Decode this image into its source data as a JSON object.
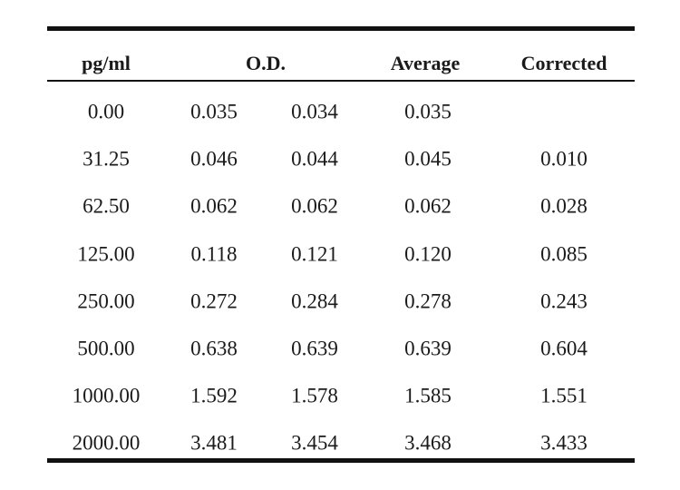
{
  "table": {
    "headers": {
      "concentration": "pg/ml",
      "od": "O.D.",
      "average": "Average",
      "corrected": "Corrected"
    },
    "rows": [
      {
        "conc": "0.00",
        "od1": "0.035",
        "od2": "0.034",
        "avg": "0.035",
        "corr": ""
      },
      {
        "conc": "31.25",
        "od1": "0.046",
        "od2": "0.044",
        "avg": "0.045",
        "corr": "0.010"
      },
      {
        "conc": "62.50",
        "od1": "0.062",
        "od2": "0.062",
        "avg": "0.062",
        "corr": "0.028"
      },
      {
        "conc": "125.00",
        "od1": "0.118",
        "od2": "0.121",
        "avg": "0.120",
        "corr": "0.085"
      },
      {
        "conc": "250.00",
        "od1": "0.272",
        "od2": "0.284",
        "avg": "0.278",
        "corr": "0.243"
      },
      {
        "conc": "500.00",
        "od1": "0.638",
        "od2": "0.639",
        "avg": "0.639",
        "corr": "0.604"
      },
      {
        "conc": "1000.00",
        "od1": "1.592",
        "od2": "1.578",
        "avg": "1.585",
        "corr": "1.551"
      },
      {
        "conc": "2000.00",
        "od1": "3.481",
        "od2": "3.454",
        "avg": "3.468",
        "corr": "3.433"
      }
    ]
  }
}
